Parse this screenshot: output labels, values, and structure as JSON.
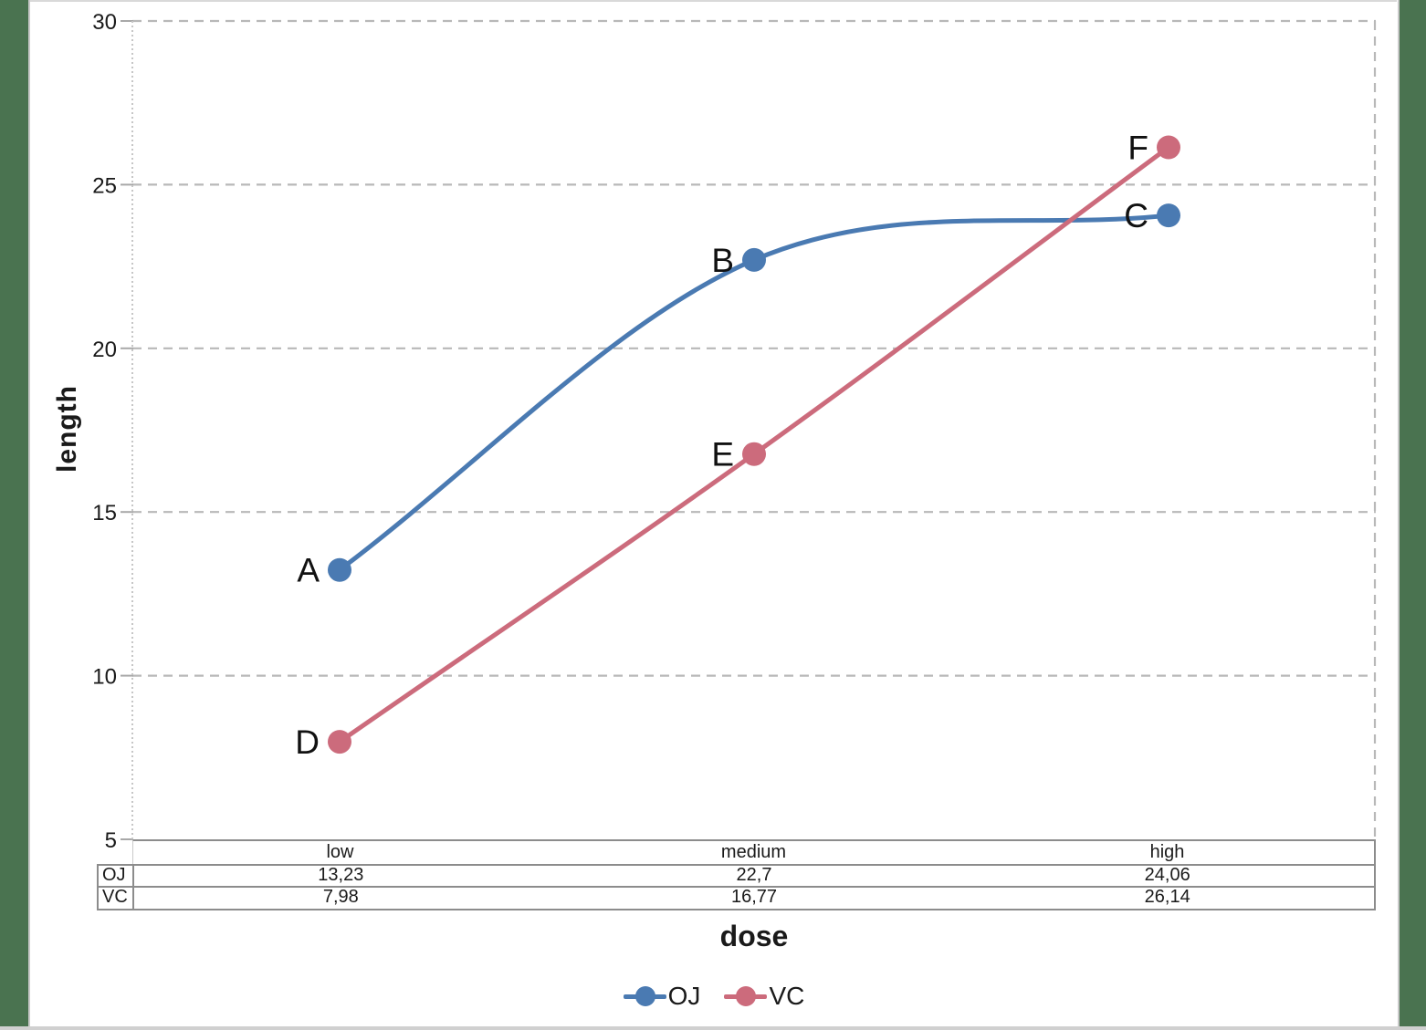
{
  "chart_data": {
    "type": "line",
    "categories": [
      "low",
      "medium",
      "high"
    ],
    "series": [
      {
        "name": "OJ",
        "values": [
          13.23,
          22.7,
          24.06
        ],
        "point_labels": [
          "A",
          "B",
          "C"
        ],
        "color": "#4a7ab2"
      },
      {
        "name": "VC",
        "values": [
          7.98,
          16.77,
          26.14
        ],
        "point_labels": [
          "D",
          "E",
          "F"
        ],
        "color": "#cc6b7c"
      }
    ],
    "xlabel": "dose",
    "ylabel": "length",
    "ylim": [
      5,
      30
    ],
    "yticks": [
      5,
      10,
      15,
      20,
      25,
      30
    ],
    "grid": "horizontal dashed gridlines, dashed right border",
    "smooth_lines": true,
    "legend_position": "bottom"
  },
  "data_table": {
    "column_headers": [
      "low",
      "medium",
      "high"
    ],
    "rows": [
      {
        "header": "OJ",
        "cells": [
          "13,23",
          "22,7",
          "24,06"
        ]
      },
      {
        "header": "VC",
        "cells": [
          "7,98",
          "16,77",
          "26,14"
        ]
      }
    ]
  },
  "legend": {
    "items": [
      {
        "label": "OJ",
        "color": "#4a7ab2"
      },
      {
        "label": "VC",
        "color": "#cc6b7c"
      }
    ]
  },
  "colors": {
    "oj_blue": "#4a7ab2",
    "vc_rose": "#cc6b7c",
    "frame_green": "#4a7350",
    "gridline_gray": "#b8b8b8",
    "axis_gray": "#c6c6c6",
    "table_border_gray": "#8c8c8c"
  }
}
